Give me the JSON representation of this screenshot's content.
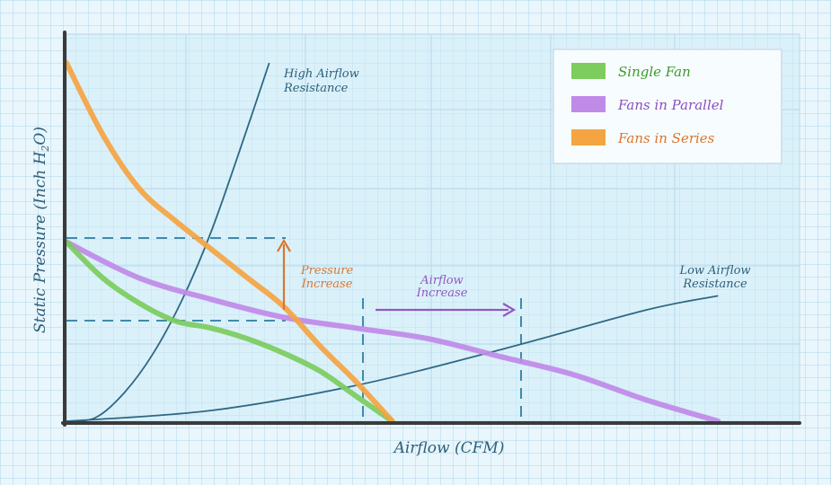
{
  "chart_data": {
    "type": "line",
    "xlabel": "Airflow (CFM)",
    "ylabel": "Static Pressure (Inch H",
    "ylabel_sub": "2",
    "ylabel_end": "O)",
    "xlim": [
      0,
      100
    ],
    "ylim": [
      0,
      100
    ],
    "grid": true,
    "legend_position": "top-right",
    "series": [
      {
        "name": "Single Fan",
        "color": "#7ccc5e",
        "x": [
          0,
          5,
          10,
          15,
          20,
          25,
          30,
          35,
          40,
          45
        ],
        "y": [
          50,
          40,
          33,
          28,
          26,
          23,
          19,
          14,
          7,
          0
        ]
      },
      {
        "name": "Fans in Parallel",
        "color": "#c08ae8",
        "x": [
          0,
          10,
          20,
          30,
          40,
          50,
          60,
          70,
          80,
          90
        ],
        "y": [
          50,
          40,
          34,
          29,
          26,
          23,
          18,
          13,
          6,
          0
        ]
      },
      {
        "name": "Fans in Series",
        "color": "#f5a442",
        "x": [
          0,
          5,
          10,
          15,
          20,
          25,
          30,
          35,
          40,
          45
        ],
        "y": [
          100,
          80,
          65,
          56,
          48,
          40,
          32,
          21,
          11,
          0
        ]
      }
    ],
    "system_curves": [
      {
        "label_line1": "High Airflow",
        "label_line2": "Resistance",
        "color": "#2f6882",
        "x": [
          0,
          4,
          8,
          12,
          16,
          20,
          24,
          28
        ],
        "y": [
          0,
          1,
          8,
          19,
          34,
          53,
          76,
          100
        ]
      },
      {
        "label_line1": "Low Airflow",
        "label_line2": "Resistance",
        "color": "#2f6882",
        "x": [
          0,
          20,
          40,
          60,
          80,
          90
        ],
        "y": [
          0,
          3,
          10,
          20,
          31,
          35
        ]
      }
    ],
    "annotations": {
      "pressure_line1": "Pressure",
      "pressure_line2": "Increase",
      "pressure_color": "#d9772f",
      "airflow_line1": "Airflow",
      "airflow_line2": "Increase",
      "airflow_color": "#9059c0",
      "ref_color": "#3f8aaa"
    }
  }
}
